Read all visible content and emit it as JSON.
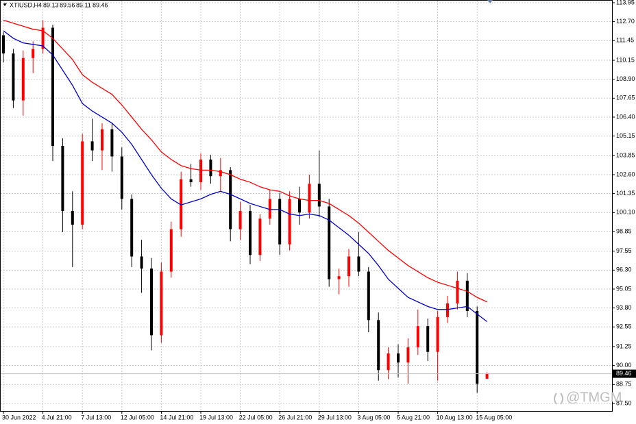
{
  "chart_data": {
    "type": "candlestick",
    "symbol": "XTIUSD,H4",
    "categories": [
      "30 Jun 2022",
      null,
      null,
      null,
      "4 Jul 21:00",
      null,
      null,
      null,
      "7 Jul 13:00",
      null,
      null,
      null,
      "12 Jul 05:00",
      null,
      null,
      null,
      "14 Jul 21:00",
      null,
      null,
      null,
      "19 Jul 13:00",
      null,
      null,
      null,
      "22 Jul 05:00",
      null,
      null,
      null,
      "26 Jul 21:00",
      null,
      null,
      null,
      "29 Jul 13:00",
      null,
      null,
      null,
      "3 Aug 05:00",
      null,
      null,
      null,
      "5 Aug 21:00",
      null,
      null,
      null,
      "10 Aug 13:00",
      null,
      null,
      null,
      "15 Aug 05:00",
      null
    ],
    "open": [
      111.8,
      110.6,
      107.5,
      110.3,
      110.9,
      112.3,
      104.5,
      100.2,
      99.3,
      104.8,
      104.2,
      105.6,
      103.8,
      101.0,
      97.2,
      96.4,
      92.0,
      96.2,
      99.0,
      102.3,
      102.1,
      103.6,
      102.5,
      102.9,
      99.0,
      100.2,
      97.3,
      99.7,
      101.0,
      98.0,
      101.0,
      100.1,
      102.0,
      100.5,
      95.7,
      95.9,
      97.2,
      96.2,
      93.0,
      89.7,
      90.8,
      90.2,
      91.2,
      92.6,
      90.9,
      93.2,
      94.1,
      95.6,
      93.6,
      89.13
    ],
    "high": [
      112.0,
      110.9,
      110.8,
      111.4,
      112.8,
      112.5,
      105.0,
      101.5,
      105.3,
      106.3,
      106.0,
      106.0,
      104.4,
      101.3,
      98.3,
      97.1,
      96.8,
      99.5,
      102.8,
      103.3,
      104.0,
      103.9,
      103.7,
      103.1,
      100.8,
      100.6,
      100.0,
      101.6,
      101.4,
      101.5,
      101.8,
      102.6,
      104.2,
      101.0,
      96.4,
      97.7,
      98.8,
      96.5,
      93.5,
      91.2,
      91.4,
      91.8,
      93.7,
      93.1,
      93.6,
      94.6,
      96.2,
      96.1,
      93.9,
      89.56
    ],
    "low": [
      110.0,
      107.0,
      106.5,
      109.3,
      110.6,
      103.5,
      98.8,
      96.5,
      99.0,
      103.5,
      102.9,
      102.8,
      100.3,
      96.5,
      94.8,
      91.0,
      91.5,
      95.8,
      98.5,
      101.8,
      101.6,
      102.0,
      101.5,
      98.2,
      98.3,
      96.7,
      96.9,
      99.3,
      97.3,
      97.6,
      99.3,
      99.7,
      99.8,
      95.2,
      94.7,
      95.2,
      95.9,
      92.2,
      89.0,
      89.1,
      89.2,
      88.8,
      90.7,
      90.3,
      89.0,
      92.8,
      93.7,
      93.2,
      88.2,
      89.11
    ],
    "close": [
      110.6,
      107.5,
      110.3,
      110.9,
      112.3,
      104.5,
      100.2,
      99.3,
      104.8,
      104.2,
      105.6,
      103.8,
      101.0,
      97.2,
      96.4,
      92.0,
      96.2,
      99.0,
      102.3,
      102.1,
      103.6,
      102.5,
      102.9,
      99.0,
      100.2,
      97.3,
      99.7,
      101.0,
      98.0,
      101.0,
      100.1,
      102.0,
      100.5,
      95.7,
      95.9,
      97.2,
      96.2,
      93.0,
      89.7,
      90.8,
      90.2,
      91.2,
      92.6,
      90.9,
      93.2,
      94.1,
      95.6,
      93.6,
      88.8,
      89.46
    ],
    "up_color": "#ff0000",
    "down_color": "#000000",
    "moving_averages": [
      {
        "color": "#ff0000",
        "values": [
          112.8,
          112.6,
          112.4,
          112.2,
          112.1,
          111.6,
          110.9,
          110.2,
          109.2,
          108.7,
          108.3,
          107.9,
          107.2,
          106.4,
          105.6,
          104.9,
          104.1,
          103.6,
          103.2,
          103.0,
          102.9,
          102.9,
          102.8,
          102.6,
          102.3,
          102.1,
          101.8,
          101.6,
          101.5,
          101.2,
          101.0,
          100.9,
          100.9,
          100.7,
          100.3,
          99.9,
          99.4,
          98.8,
          98.2,
          97.6,
          97.1,
          96.6,
          96.2,
          95.8,
          95.5,
          95.3,
          95.1,
          94.9,
          94.5,
          94.2
        ]
      },
      {
        "color": "#0000cc",
        "values": [
          112.1,
          111.6,
          111.3,
          111.2,
          111.1,
          110.5,
          109.5,
          108.5,
          107.3,
          106.8,
          106.4,
          106.0,
          105.4,
          104.6,
          103.6,
          102.6,
          101.7,
          101.0,
          100.6,
          100.8,
          101.0,
          101.3,
          101.5,
          101.3,
          101.0,
          100.7,
          100.5,
          100.3,
          100.3,
          100.0,
          99.9,
          100.0,
          99.9,
          99.6,
          99.1,
          98.6,
          98.0,
          97.4,
          96.6,
          95.7,
          95.1,
          94.5,
          94.2,
          93.9,
          93.7,
          93.7,
          93.8,
          93.9,
          93.4,
          92.9
        ]
      }
    ],
    "ylim": [
      87.0,
      114.13
    ],
    "yticks": [
      {
        "value": 87.5,
        "label": "87.50"
      },
      88.75,
      {
        "value": 90,
        "label": "90.00"
      },
      91.25,
      92.55,
      {
        "value": 93.8,
        "label": "93.80"
      },
      95.05,
      {
        "value": 96.3,
        "label": "96.30"
      },
      97.55,
      98.85,
      {
        "value": 100.1,
        "label": "100.10"
      },
      101.35,
      {
        "value": 102.6,
        "label": "102.60"
      },
      103.85,
      105.15,
      {
        "value": 106.4,
        "label": "106.40"
      },
      107.65,
      {
        "value": 108.9,
        "label": "108.90"
      },
      110.15,
      111.45,
      {
        "value": 112.7,
        "label": "112.70"
      },
      113.95
    ],
    "grid": true,
    "watermark": "@TMGM"
  }
}
